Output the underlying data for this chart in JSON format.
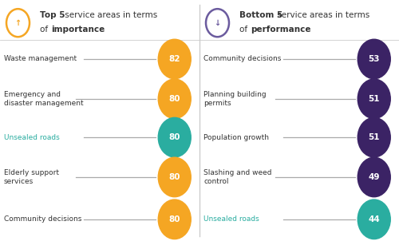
{
  "left_items": [
    {
      "label": "Waste management",
      "value": 82,
      "color": "#F5A623",
      "highlight": false,
      "multiline": false
    },
    {
      "label": "Emergency and\ndisaster management",
      "value": 80,
      "color": "#F5A623",
      "highlight": false,
      "multiline": true
    },
    {
      "label": "Unsealed roads",
      "value": 80,
      "color": "#2AADA0",
      "highlight": true,
      "multiline": false
    },
    {
      "label": "Elderly support\nservices",
      "value": 80,
      "color": "#F5A623",
      "highlight": false,
      "multiline": true
    },
    {
      "label": "Community decisions",
      "value": 80,
      "color": "#F5A623",
      "highlight": false,
      "multiline": false
    }
  ],
  "right_items": [
    {
      "label": "Community decisions",
      "value": 53,
      "color": "#3B2365",
      "highlight": false,
      "multiline": false
    },
    {
      "label": "Planning building\npermits",
      "value": 51,
      "color": "#3B2365",
      "highlight": false,
      "multiline": true
    },
    {
      "label": "Population growth",
      "value": 51,
      "color": "#3B2365",
      "highlight": false,
      "multiline": false
    },
    {
      "label": "Slashing and weed\ncontrol",
      "value": 49,
      "color": "#3B2365",
      "highlight": false,
      "multiline": true
    },
    {
      "label": "Unsealed roads",
      "value": 44,
      "color": "#2AADA0",
      "highlight": true,
      "multiline": false
    }
  ],
  "highlight_color": "#2AADA0",
  "orange_color": "#F5A623",
  "purple_color": "#3B2365",
  "arrow_up_color": "#F5A623",
  "arrow_down_color": "#6B5B9E",
  "line_color": "#AAAAAA",
  "text_color": "#333333",
  "highlight_text_color": "#2AADA0",
  "bg_color": "#FFFFFF",
  "left_title_line1_normal": " service areas in terms",
  "left_title_line1_bold": "Top 5",
  "left_title_line2_normal": "of ",
  "left_title_line2_bold": "importance",
  "right_title_line1_normal": " service areas in terms",
  "right_title_line1_bold": "Bottom 5",
  "right_title_line2_normal": "of ",
  "right_title_line2_bold": "performance"
}
